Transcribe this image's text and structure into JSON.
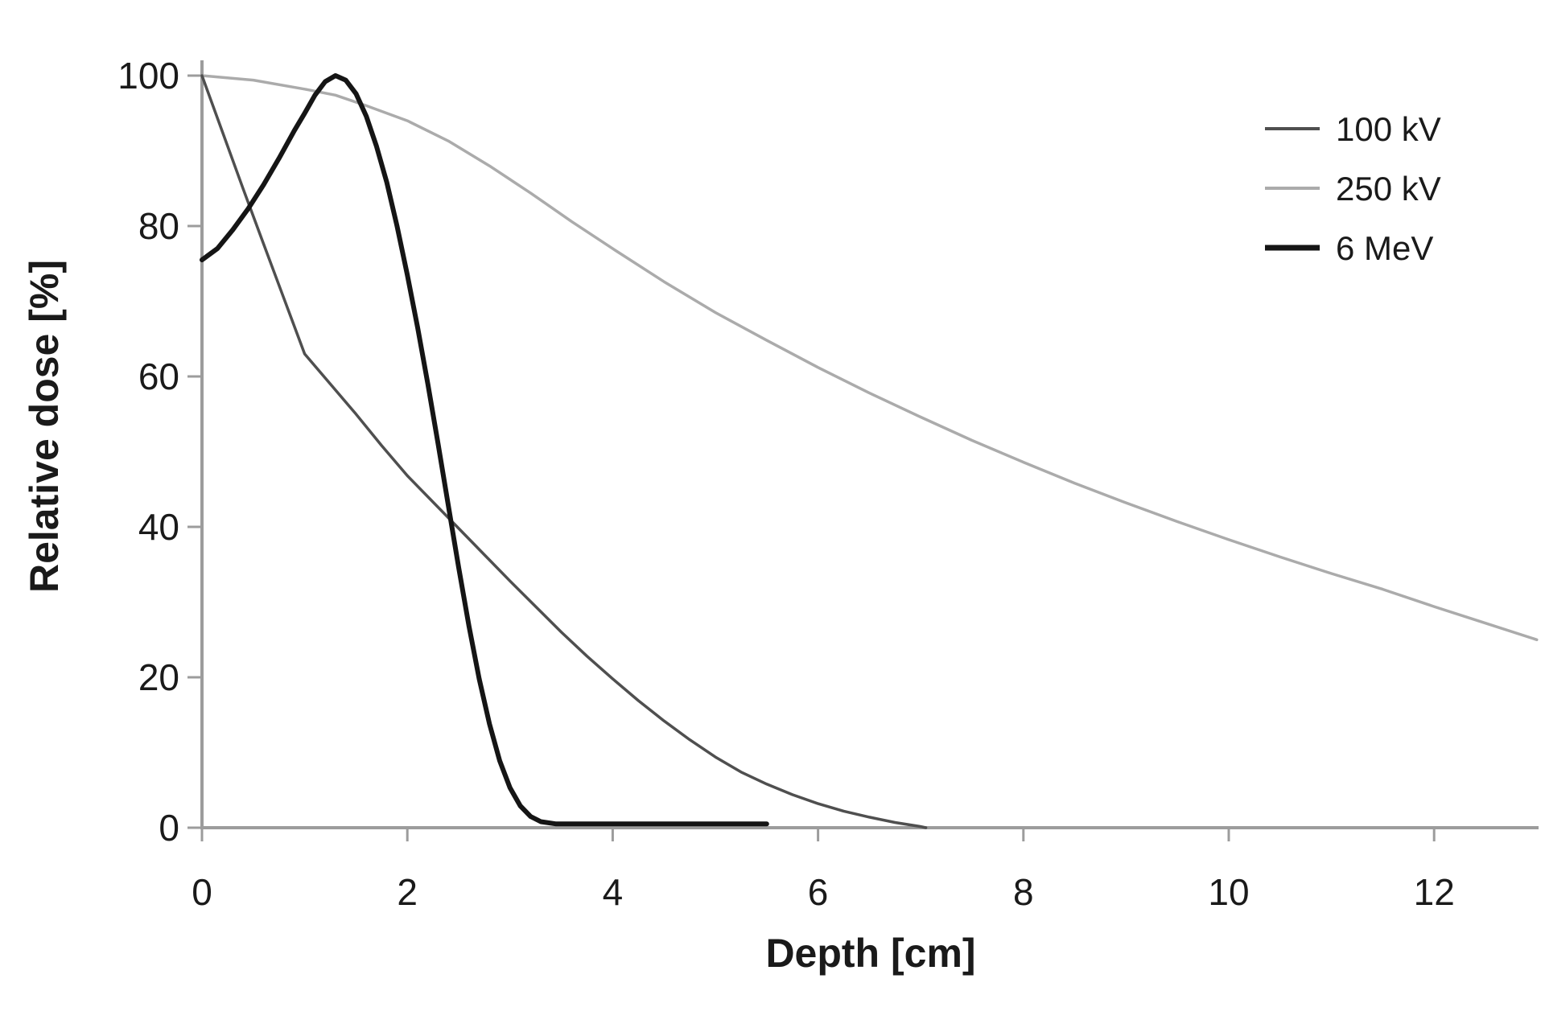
{
  "figure": {
    "background": "#ffffff",
    "text_color": "#1a1a1a",
    "axis_color": "#9c9c9c"
  },
  "chart_data": {
    "type": "line",
    "title": "",
    "xlabel": "Depth [cm]",
    "ylabel": "Relative dose [%]",
    "xlim": [
      0,
      13
    ],
    "ylim": [
      0,
      100
    ],
    "xticks": [
      0,
      2,
      4,
      6,
      8,
      10,
      12
    ],
    "yticks": [
      0,
      20,
      40,
      60,
      80,
      100
    ],
    "grid": false,
    "legend": {
      "position": "top-right",
      "entries": [
        "100 kV",
        "250 kV",
        "6 MeV"
      ]
    },
    "series": [
      {
        "name": "250 kV",
        "color": "#ababab",
        "stroke_width": 3.5,
        "points": [
          [
            0,
            100
          ],
          [
            0.5,
            99.4
          ],
          [
            1,
            98.2
          ],
          [
            1.3,
            97.4
          ],
          [
            1.6,
            96
          ],
          [
            2,
            94
          ],
          [
            2.4,
            91.3
          ],
          [
            2.8,
            88
          ],
          [
            3.2,
            84.4
          ],
          [
            3.6,
            80.6
          ],
          [
            4,
            77
          ],
          [
            4.5,
            72.6
          ],
          [
            5,
            68.5
          ],
          [
            5.5,
            64.8
          ],
          [
            6,
            61.2
          ],
          [
            6.5,
            57.8
          ],
          [
            7,
            54.6
          ],
          [
            7.5,
            51.5
          ],
          [
            8,
            48.6
          ],
          [
            8.5,
            45.8
          ],
          [
            9,
            43.2
          ],
          [
            9.5,
            40.7
          ],
          [
            10,
            38.3
          ],
          [
            10.5,
            36
          ],
          [
            11,
            33.8
          ],
          [
            11.5,
            31.7
          ],
          [
            12,
            29.4
          ],
          [
            12.5,
            27.2
          ],
          [
            13,
            25
          ]
        ]
      },
      {
        "name": "100 kV",
        "color": "#4f4f4f",
        "stroke_width": 3.5,
        "points": [
          [
            0,
            100
          ],
          [
            0.2,
            92.5
          ],
          [
            0.4,
            85
          ],
          [
            0.6,
            77.6
          ],
          [
            0.8,
            70.3
          ],
          [
            1,
            63
          ],
          [
            1.25,
            59
          ],
          [
            1.5,
            55
          ],
          [
            1.75,
            50.8
          ],
          [
            2,
            46.8
          ],
          [
            2.25,
            43.3
          ],
          [
            2.5,
            39.8
          ],
          [
            2.75,
            36.3
          ],
          [
            3,
            32.8
          ],
          [
            3.25,
            29.4
          ],
          [
            3.5,
            26
          ],
          [
            3.75,
            22.8
          ],
          [
            4,
            19.8
          ],
          [
            4.25,
            16.9
          ],
          [
            4.5,
            14.2
          ],
          [
            4.75,
            11.7
          ],
          [
            5,
            9.4
          ],
          [
            5.25,
            7.4
          ],
          [
            5.5,
            5.8
          ],
          [
            5.75,
            4.4
          ],
          [
            6,
            3.2
          ],
          [
            6.25,
            2.2
          ],
          [
            6.5,
            1.4
          ],
          [
            6.75,
            0.7
          ],
          [
            7,
            0.15
          ],
          [
            7.05,
            0
          ]
        ]
      },
      {
        "name": "6 MeV",
        "color": "#151515",
        "stroke_width": 6,
        "points": [
          [
            0,
            75.5
          ],
          [
            0.15,
            77
          ],
          [
            0.3,
            79.5
          ],
          [
            0.45,
            82.3
          ],
          [
            0.6,
            85.5
          ],
          [
            0.75,
            89
          ],
          [
            0.9,
            92.7
          ],
          [
            1.0,
            95
          ],
          [
            1.1,
            97.4
          ],
          [
            1.2,
            99.2
          ],
          [
            1.3,
            100
          ],
          [
            1.4,
            99.4
          ],
          [
            1.5,
            97.6
          ],
          [
            1.6,
            94.6
          ],
          [
            1.7,
            90.6
          ],
          [
            1.8,
            85.8
          ],
          [
            1.9,
            80
          ],
          [
            2.0,
            73.5
          ],
          [
            2.1,
            66.5
          ],
          [
            2.2,
            59
          ],
          [
            2.3,
            51
          ],
          [
            2.4,
            42.8
          ],
          [
            2.5,
            34.6
          ],
          [
            2.6,
            26.8
          ],
          [
            2.7,
            19.8
          ],
          [
            2.8,
            13.8
          ],
          [
            2.9,
            8.9
          ],
          [
            3.0,
            5.3
          ],
          [
            3.1,
            2.9
          ],
          [
            3.2,
            1.5
          ],
          [
            3.3,
            0.8
          ],
          [
            3.45,
            0.5
          ],
          [
            4,
            0.5
          ],
          [
            4.5,
            0.5
          ],
          [
            5,
            0.5
          ],
          [
            5.5,
            0.5
          ]
        ]
      }
    ]
  },
  "legend_style": {
    "swatch_widths": [
      4,
      4,
      7
    ]
  }
}
